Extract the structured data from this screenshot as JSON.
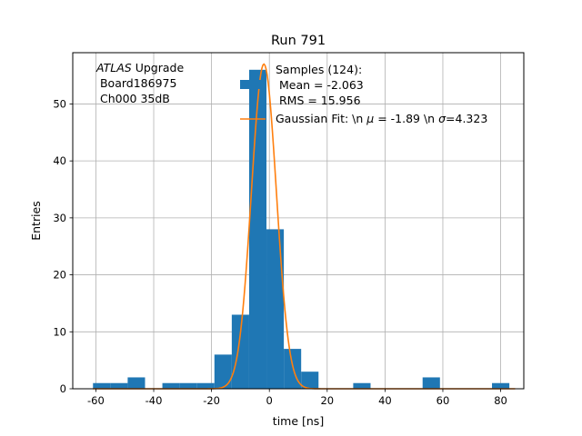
{
  "chart_data": {
    "type": "bar",
    "title": "Run 791",
    "xlabel": "time [ns]",
    "ylabel": "Entries",
    "xlim": [
      -68,
      88
    ],
    "ylim": [
      0,
      59
    ],
    "xticks": [
      -60,
      -40,
      -20,
      0,
      20,
      40,
      60,
      80
    ],
    "yticks": [
      0,
      10,
      20,
      30,
      40,
      50
    ],
    "grid": true,
    "histogram": {
      "name": "Samples (124):\n Mean = -2.063\n RMS = 15.956",
      "color": "#1f77b4",
      "bin_edges": [
        -61,
        -55,
        -49,
        -43,
        -37,
        -31,
        -25,
        -19,
        -13,
        -7,
        -1,
        5,
        11,
        17,
        23,
        29,
        35,
        41,
        47,
        53,
        59,
        65,
        71,
        77,
        83
      ],
      "counts": [
        1,
        1,
        2,
        0,
        1,
        1,
        1,
        6,
        13,
        56,
        28,
        7,
        3,
        0,
        0,
        1,
        0,
        0,
        0,
        2,
        0,
        0,
        0,
        1
      ]
    },
    "fit": {
      "name": "Gaussian Fit: \\n $\\mu$ = -1.89 \\n $\\sigma$=4.323",
      "color": "#ff7f0e",
      "amplitude": 57,
      "mu": -1.89,
      "sigma": 4.323,
      "x_range": [
        -61,
        85
      ]
    },
    "legend_position": "upper right",
    "annotation": {
      "italic_part": "ATLAS",
      "rest_line1": " Upgrade",
      "line2": " Board186975",
      "line3": " Ch000 35dB"
    }
  }
}
